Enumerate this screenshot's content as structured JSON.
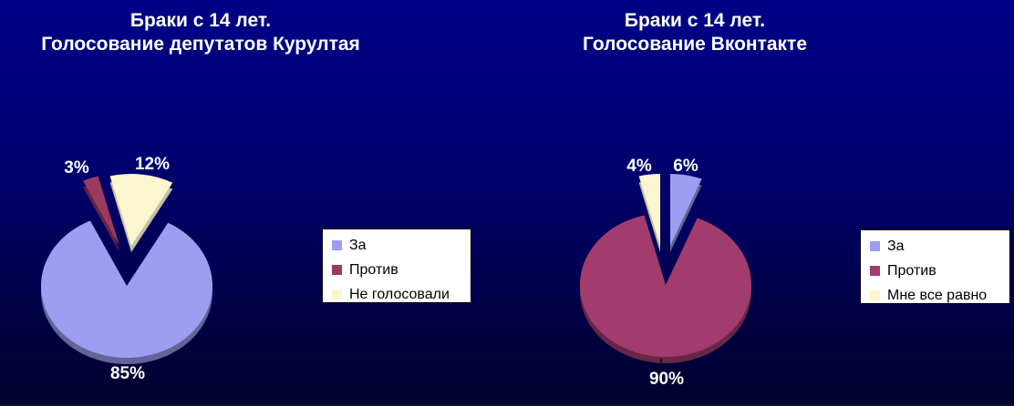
{
  "slide": {
    "background_top_color": "#000087",
    "background_bottom_color": "#01012e",
    "title_color": "#ffffff"
  },
  "charts": [
    {
      "title_line1": "Браки с 14 лет.",
      "title_line2": "Голосование депутатов Курултая",
      "legend": {
        "items": [
          {
            "label": "За",
            "color": "#9d9df1"
          },
          {
            "label": "Против",
            "color": "#993b5f"
          },
          {
            "label": "Не голосовали",
            "color": "#fbf6cf"
          }
        ]
      }
    },
    {
      "title_line1": "Браки с 14 лет.",
      "title_line2": "Голосование Вконтакте",
      "legend": {
        "items": [
          {
            "label": "За",
            "color": "#9d9df1"
          },
          {
            "label": "Против",
            "color": "#a23c6e"
          },
          {
            "label": "Мне все равно",
            "color": "#fbf6cf"
          }
        ]
      }
    }
  ],
  "chart_data": [
    {
      "type": "pie",
      "style": "3d-exploded-pie",
      "title": "Браки с 14 лет. Голосование депутатов Курултая",
      "legend_position": "right",
      "unit": "%",
      "series": [
        {
          "name": "За",
          "value": 85,
          "label": "85%",
          "color": "#9d9df1"
        },
        {
          "name": "Против",
          "value": 3,
          "label": "3%",
          "color": "#993b5f"
        },
        {
          "name": "Не голосовали",
          "value": 12,
          "label": "12%",
          "color": "#fbf6cf"
        }
      ]
    },
    {
      "type": "pie",
      "style": "3d-exploded-pie",
      "title": "Браки с 14 лет. Голосование Вконтакте",
      "legend_position": "right",
      "unit": "%",
      "series": [
        {
          "name": "За",
          "value": 6,
          "label": "6%",
          "color": "#9d9df1"
        },
        {
          "name": "Против",
          "value": 90,
          "label": "90%",
          "color": "#a23c6e"
        },
        {
          "name": "Мне все равно",
          "value": 4,
          "label": "4%",
          "color": "#fbf6cf"
        }
      ]
    }
  ]
}
